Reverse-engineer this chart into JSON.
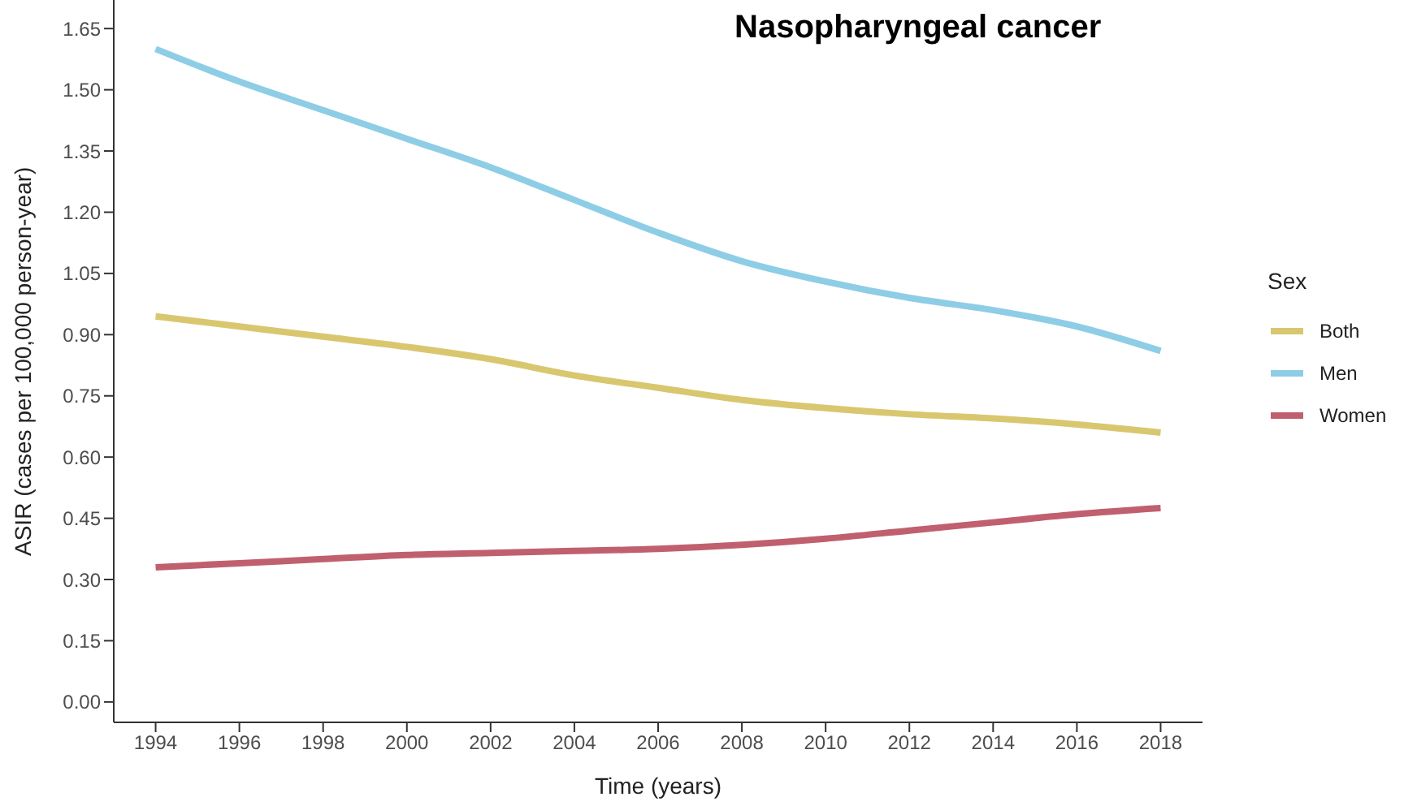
{
  "chart_data": {
    "type": "line",
    "title": "Nasopharyngeal cancer",
    "xlabel": "Time (years)",
    "ylabel": "ASIR (cases per 100,000 person-year)",
    "legend_title": "Sex",
    "legend": "right",
    "grid": false,
    "marker": "none",
    "line_style": "solid",
    "x": [
      1994,
      1996,
      1998,
      2000,
      2002,
      2004,
      2006,
      2008,
      2010,
      2012,
      2014,
      2016,
      2018
    ],
    "xlim": [
      1993,
      2019
    ],
    "xticks": [
      1994,
      1996,
      1998,
      2000,
      2002,
      2004,
      2006,
      2008,
      2010,
      2012,
      2014,
      2016,
      2018
    ],
    "ylim": [
      -0.05,
      1.72
    ],
    "yticks": [
      {
        "value": 0,
        "label": "0.00"
      },
      {
        "value": 0.15,
        "label": "0.15"
      },
      {
        "value": 0.3,
        "label": "0.30"
      },
      {
        "value": 0.45,
        "label": "0.45"
      },
      {
        "value": 0.6,
        "label": "0.60"
      },
      {
        "value": 0.75,
        "label": "0.75"
      },
      {
        "value": 0.9,
        "label": "0.90"
      },
      {
        "value": 1.05,
        "label": "1.05"
      },
      {
        "value": 1.2,
        "label": "1.20"
      },
      {
        "value": 1.35,
        "label": "1.35"
      },
      {
        "value": 1.5,
        "label": "1.50"
      },
      {
        "value": 1.65,
        "label": "1.65"
      }
    ],
    "series": [
      {
        "name": "Both",
        "color": "#d9c76f",
        "values": [
          0.945,
          0.92,
          0.895,
          0.87,
          0.84,
          0.8,
          0.77,
          0.74,
          0.72,
          0.705,
          0.695,
          0.68,
          0.66
        ]
      },
      {
        "name": "Men",
        "color": "#8ecde6",
        "values": [
          1.6,
          1.52,
          1.45,
          1.38,
          1.31,
          1.23,
          1.15,
          1.08,
          1.03,
          0.99,
          0.96,
          0.92,
          0.86
        ]
      },
      {
        "name": "Women",
        "color": "#c0606e",
        "values": [
          0.33,
          0.34,
          0.35,
          0.36,
          0.365,
          0.37,
          0.375,
          0.385,
          0.4,
          0.42,
          0.44,
          0.46,
          0.475
        ]
      }
    ]
  }
}
